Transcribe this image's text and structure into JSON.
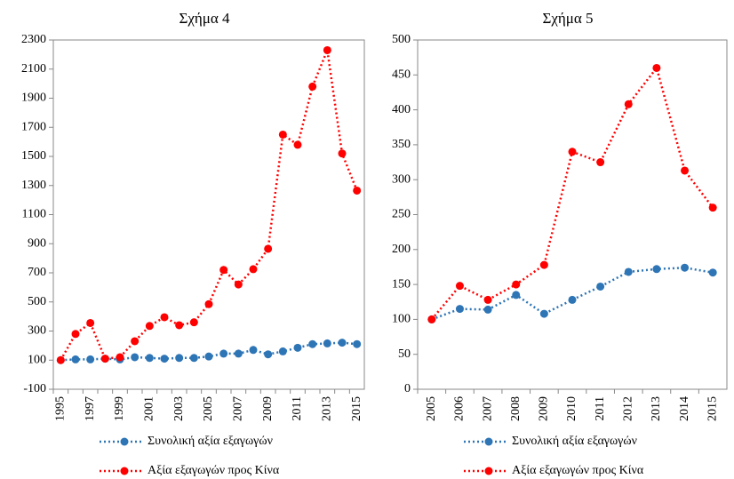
{
  "chart_data": [
    {
      "type": "line",
      "title": "Σχήμα 4",
      "categories": [
        1995,
        null,
        1997,
        null,
        1999,
        null,
        2001,
        null,
        2003,
        null,
        2005,
        null,
        2007,
        null,
        2009,
        null,
        2011,
        null,
        2013,
        null,
        2015
      ],
      "ylim": [
        -100,
        2300
      ],
      "yticks": [
        -100,
        100,
        300,
        500,
        700,
        900,
        1100,
        1300,
        1500,
        1700,
        1900,
        2100,
        2300
      ],
      "grid": false,
      "series": [
        {
          "name": "Συνολική αξία εξαγωγών",
          "color": "#2e75b6",
          "values": [
            100,
            105,
            105,
            110,
            105,
            120,
            115,
            110,
            115,
            115,
            125,
            145,
            145,
            170,
            140,
            160,
            185,
            210,
            215,
            220,
            210
          ]
        },
        {
          "name": "Αξία εξαγωγών προς Κίνα",
          "color": "#ff0000",
          "values": [
            100,
            280,
            355,
            110,
            120,
            230,
            335,
            395,
            340,
            360,
            485,
            720,
            620,
            725,
            865,
            1650,
            1580,
            1980,
            2230,
            1520,
            1265
          ]
        }
      ]
    },
    {
      "type": "line",
      "title": "Σχήμα 5",
      "categories": [
        2005,
        2006,
        2007,
        2008,
        2009,
        2010,
        2011,
        2012,
        2013,
        2014,
        2015
      ],
      "ylim": [
        0,
        500
      ],
      "yticks": [
        0,
        50,
        100,
        150,
        200,
        250,
        300,
        350,
        400,
        450,
        500
      ],
      "grid": false,
      "series": [
        {
          "name": "Συνολική αξία εξαγωγών",
          "color": "#2e75b6",
          "values": [
            100,
            115,
            114,
            135,
            108,
            128,
            147,
            168,
            172,
            174,
            167
          ]
        },
        {
          "name": "Αξία εξαγωγών προς Κίνα",
          "color": "#ff0000",
          "values": [
            100,
            148,
            128,
            150,
            178,
            340,
            325,
            408,
            460,
            313,
            260
          ]
        }
      ]
    }
  ]
}
